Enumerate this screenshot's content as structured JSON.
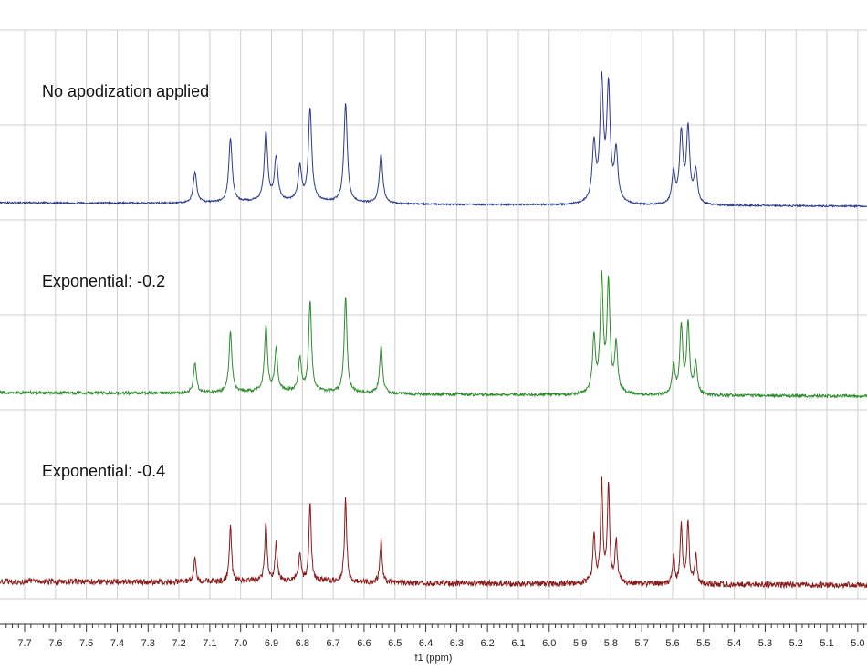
{
  "chart_data": {
    "type": "line",
    "xlabel": "f1 (ppm)",
    "xlim": [
      7.78,
      4.97
    ],
    "x_reversed": true,
    "ticks": [
      "7.7",
      "7.6",
      "7.5",
      "7.4",
      "7.3",
      "7.2",
      "7.1",
      "7.0",
      "6.9",
      "6.8",
      "6.7",
      "6.6",
      "6.5",
      "6.4",
      "6.3",
      "6.2",
      "6.1",
      "6.0",
      "5.9",
      "5.8",
      "5.7",
      "5.6",
      "5.5",
      "5.4",
      "5.3",
      "5.2",
      "5.1",
      "5.0"
    ],
    "grid": true,
    "colors": {
      "grid": "#cfcfcf",
      "axis": "#333333",
      "blue": "#2b3a8c",
      "green": "#2e8b2e",
      "red": "#8b1c1c"
    },
    "peaks": [
      {
        "ppm": 7.148,
        "height": 0.25
      },
      {
        "ppm": 7.033,
        "height": 0.52
      },
      {
        "ppm": 6.918,
        "height": 0.56
      },
      {
        "ppm": 6.885,
        "height": 0.35
      },
      {
        "ppm": 6.808,
        "height": 0.28
      },
      {
        "ppm": 6.775,
        "height": 0.75
      },
      {
        "ppm": 6.66,
        "height": 0.8
      },
      {
        "ppm": 6.545,
        "height": 0.4
      },
      {
        "ppm": 5.855,
        "height": 0.45
      },
      {
        "ppm": 5.83,
        "height": 0.95
      },
      {
        "ppm": 5.808,
        "height": 0.9
      },
      {
        "ppm": 5.783,
        "height": 0.4
      },
      {
        "ppm": 5.597,
        "height": 0.25
      },
      {
        "ppm": 5.572,
        "height": 0.57
      },
      {
        "ppm": 5.55,
        "height": 0.6
      },
      {
        "ppm": 5.525,
        "height": 0.27
      }
    ],
    "series": [
      {
        "name": "No apodization applied",
        "color": "#2b3a8c",
        "apodization": 0.0,
        "label": "No apodization applied"
      },
      {
        "name": "Exponential: -0.2",
        "color": "#2e8b2e",
        "apodization": -0.2,
        "label": "Exponential: -0.2"
      },
      {
        "name": "Exponential: -0.4",
        "color": "#8b1c1c",
        "apodization": -0.4,
        "label": "Exponential: -0.4"
      }
    ]
  }
}
